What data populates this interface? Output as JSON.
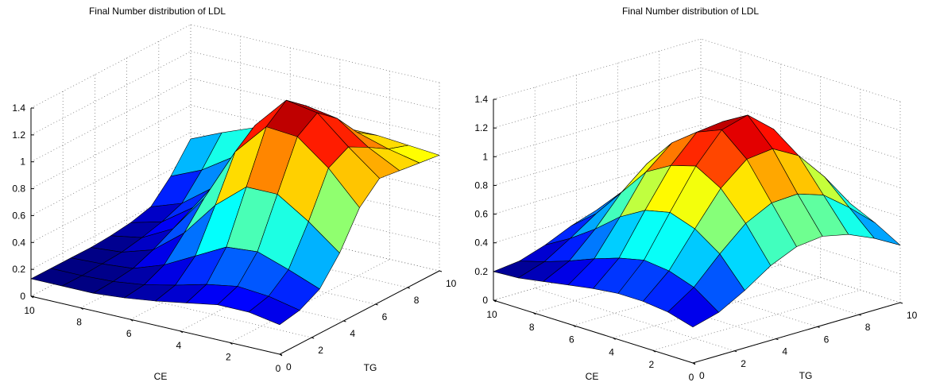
{
  "chart_data": [
    {
      "type": "surface",
      "title": "Final Number distribution of LDL",
      "xlabel": "CE",
      "ylabel": "TG",
      "zlabel": "",
      "xlim": [
        0,
        10
      ],
      "ylim": [
        0,
        10
      ],
      "zlim": [
        0,
        1.4
      ],
      "x_ticks": [
        "10",
        "8",
        "6",
        "4",
        "2",
        "0"
      ],
      "y_ticks": [
        "0",
        "2",
        "4",
        "6",
        "8",
        "10"
      ],
      "z_ticks": [
        "0",
        "0.2",
        "0.4",
        "0.6",
        "0.8",
        "1",
        "1.2",
        "1.4"
      ],
      "grid": true,
      "colormap": "jet",
      "surface": {
        "x": [
          0,
          1.25,
          2.5,
          3.75,
          5,
          6.25,
          7.5,
          8.75,
          10
        ],
        "y": [
          0,
          1.25,
          2.5,
          3.75,
          5,
          6.25,
          7.5,
          8.75,
          10
        ],
        "z": [
          [
            0.22,
            0.25,
            0.33,
            0.52,
            0.78,
            0.92,
            0.9,
            0.88,
            0.86
          ],
          [
            0.26,
            0.3,
            0.42,
            0.7,
            1.02,
            1.1,
            1.02,
            0.93,
            0.88
          ],
          [
            0.26,
            0.32,
            0.5,
            0.85,
            1.2,
            1.3,
            1.18,
            1.0,
            0.9
          ],
          [
            0.22,
            0.28,
            0.48,
            0.85,
            1.22,
            1.34,
            1.22,
            1.02,
            0.9
          ],
          [
            0.18,
            0.22,
            0.36,
            0.66,
            0.98,
            1.1,
            1.02,
            0.92,
            0.88
          ],
          [
            0.15,
            0.17,
            0.24,
            0.4,
            0.58,
            0.68,
            0.72,
            0.8,
            0.85
          ],
          [
            0.13,
            0.14,
            0.16,
            0.22,
            0.3,
            0.38,
            0.45,
            0.6,
            0.74
          ],
          [
            0.13,
            0.13,
            0.14,
            0.15,
            0.18,
            0.22,
            0.28,
            0.45,
            0.65
          ],
          [
            0.13,
            0.13,
            0.13,
            0.13,
            0.14,
            0.16,
            0.2,
            0.35,
            0.55
          ]
        ]
      }
    },
    {
      "type": "surface",
      "title": "Final Number distribution of LDL",
      "xlabel": "CE",
      "ylabel": "TG",
      "zlabel": "",
      "xlim": [
        0,
        10
      ],
      "ylim": [
        0,
        10
      ],
      "zlim": [
        0,
        1.4
      ],
      "x_ticks": [
        "10",
        "8",
        "6",
        "4",
        "2",
        "0"
      ],
      "y_ticks": [
        "0",
        "2",
        "4",
        "6",
        "8",
        "10"
      ],
      "z_ticks": [
        "0",
        "0.2",
        "0.4",
        "0.6",
        "0.8",
        "1",
        "1.2",
        "1.4"
      ],
      "grid": true,
      "colormap": "jet",
      "surface": {
        "x": [
          0,
          1.25,
          2.5,
          3.75,
          5,
          6.25,
          7.5,
          8.75,
          10
        ],
        "y": [
          0,
          1.25,
          2.5,
          3.75,
          5,
          6.25,
          7.5,
          8.75,
          10
        ],
        "z": [
          [
            0.25,
            0.3,
            0.4,
            0.52,
            0.6,
            0.62,
            0.58,
            0.5,
            0.4
          ],
          [
            0.3,
            0.42,
            0.6,
            0.76,
            0.85,
            0.86,
            0.8,
            0.66,
            0.5
          ],
          [
            0.32,
            0.48,
            0.72,
            0.95,
            1.1,
            1.12,
            1.02,
            0.82,
            0.58
          ],
          [
            0.32,
            0.5,
            0.78,
            1.05,
            1.25,
            1.3,
            1.15,
            0.88,
            0.6
          ],
          [
            0.3,
            0.46,
            0.74,
            1.0,
            1.18,
            1.2,
            1.05,
            0.8,
            0.55
          ],
          [
            0.27,
            0.4,
            0.64,
            0.9,
            1.05,
            1.0,
            0.85,
            0.66,
            0.48
          ],
          [
            0.24,
            0.33,
            0.5,
            0.7,
            0.85,
            0.8,
            0.66,
            0.52,
            0.4
          ],
          [
            0.21,
            0.27,
            0.38,
            0.5,
            0.6,
            0.58,
            0.5,
            0.42,
            0.33
          ],
          [
            0.2,
            0.22,
            0.28,
            0.36,
            0.42,
            0.42,
            0.38,
            0.32,
            0.27
          ]
        ]
      }
    }
  ]
}
